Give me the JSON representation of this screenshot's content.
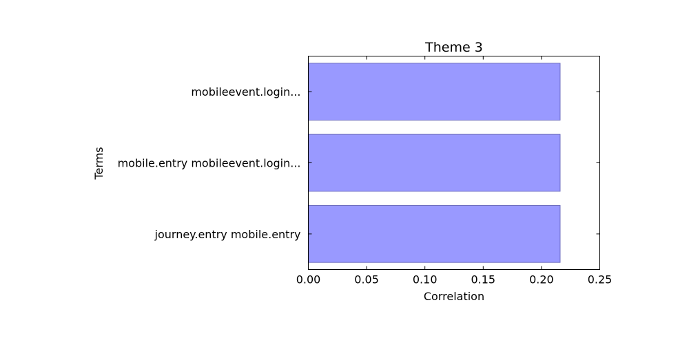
{
  "chart_data": {
    "type": "bar",
    "orientation": "horizontal",
    "title": "Theme 3",
    "xlabel": "Correlation",
    "ylabel": "Terms",
    "categories": [
      "mobileevent.login...",
      "mobile.entry mobileevent.login...",
      "journey.entry mobile.entry"
    ],
    "values": [
      0.216,
      0.216,
      0.216
    ],
    "xlim": [
      0.0,
      0.25
    ],
    "xticks": [
      "0.00",
      "0.05",
      "0.10",
      "0.15",
      "0.20",
      "0.25"
    ],
    "grid": false,
    "bar_color": "#9999ff",
    "bar_edge_color": "#6b6bbf"
  }
}
